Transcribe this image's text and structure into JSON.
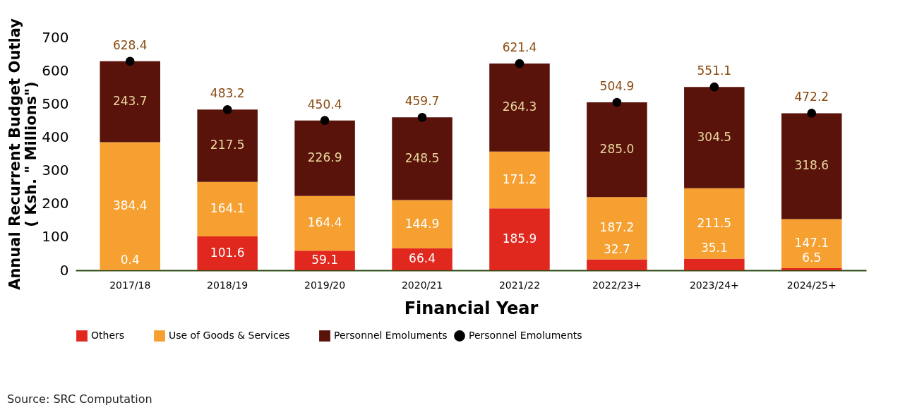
{
  "chart_data": {
    "type": "bar",
    "stacked": true,
    "xlabel": "Financial Year",
    "ylabel": "Annual Recurrent Budget Outlay ( Ksh. \" Millions\")",
    "categories": [
      "2017/18",
      "2018/19",
      "2019/20",
      "2020/21",
      "2021/22",
      "2022/23+",
      "2023/24+",
      "2024/25+"
    ],
    "series": [
      {
        "name": "Others",
        "color": "#e0281e",
        "values": [
          0.4,
          101.6,
          59.1,
          66.4,
          185.9,
          32.7,
          35.1,
          6.5
        ],
        "value_labels": [
          "0.4",
          "101.6",
          "59.1",
          "66.4",
          "185.9",
          "32.7",
          "35.1",
          "6.5"
        ]
      },
      {
        "name": "Use of Goods & Services",
        "color": "#f5a030",
        "values": [
          384.4,
          164.1,
          164.4,
          144.9,
          171.2,
          187.2,
          211.5,
          147.1
        ],
        "value_labels": [
          "384.4",
          "164.1",
          "164.4",
          "144.9",
          "171.2",
          "187.2",
          "211.5",
          "147.1"
        ]
      },
      {
        "name": "Personnel Emoluments",
        "color": "#5a130a",
        "values": [
          243.7,
          217.5,
          226.9,
          248.5,
          264.3,
          285.0,
          304.5,
          318.6
        ],
        "value_labels": [
          "243.7",
          "217.5",
          "226.9",
          "248.5",
          "264.3",
          "285.0",
          "304.5",
          "318.6"
        ]
      },
      {
        "name": "Personnel Emoluments",
        "type": "scatter",
        "color": "#000000",
        "values": [
          628.4,
          483.2,
          450.4,
          459.7,
          621.4,
          504.9,
          551.1,
          472.2
        ],
        "value_labels": [
          "628.4",
          "483.2",
          "450.4",
          "459.7",
          "621.4",
          "504.9",
          "551.1",
          "472.2"
        ]
      }
    ],
    "ylim": [
      0,
      700
    ],
    "yticks": [
      0,
      100,
      200,
      300,
      400,
      500,
      600,
      700
    ],
    "grid": false,
    "legend": "bottom",
    "marker": "circle",
    "annotations": [
      "Source: SRC Computation"
    ]
  }
}
